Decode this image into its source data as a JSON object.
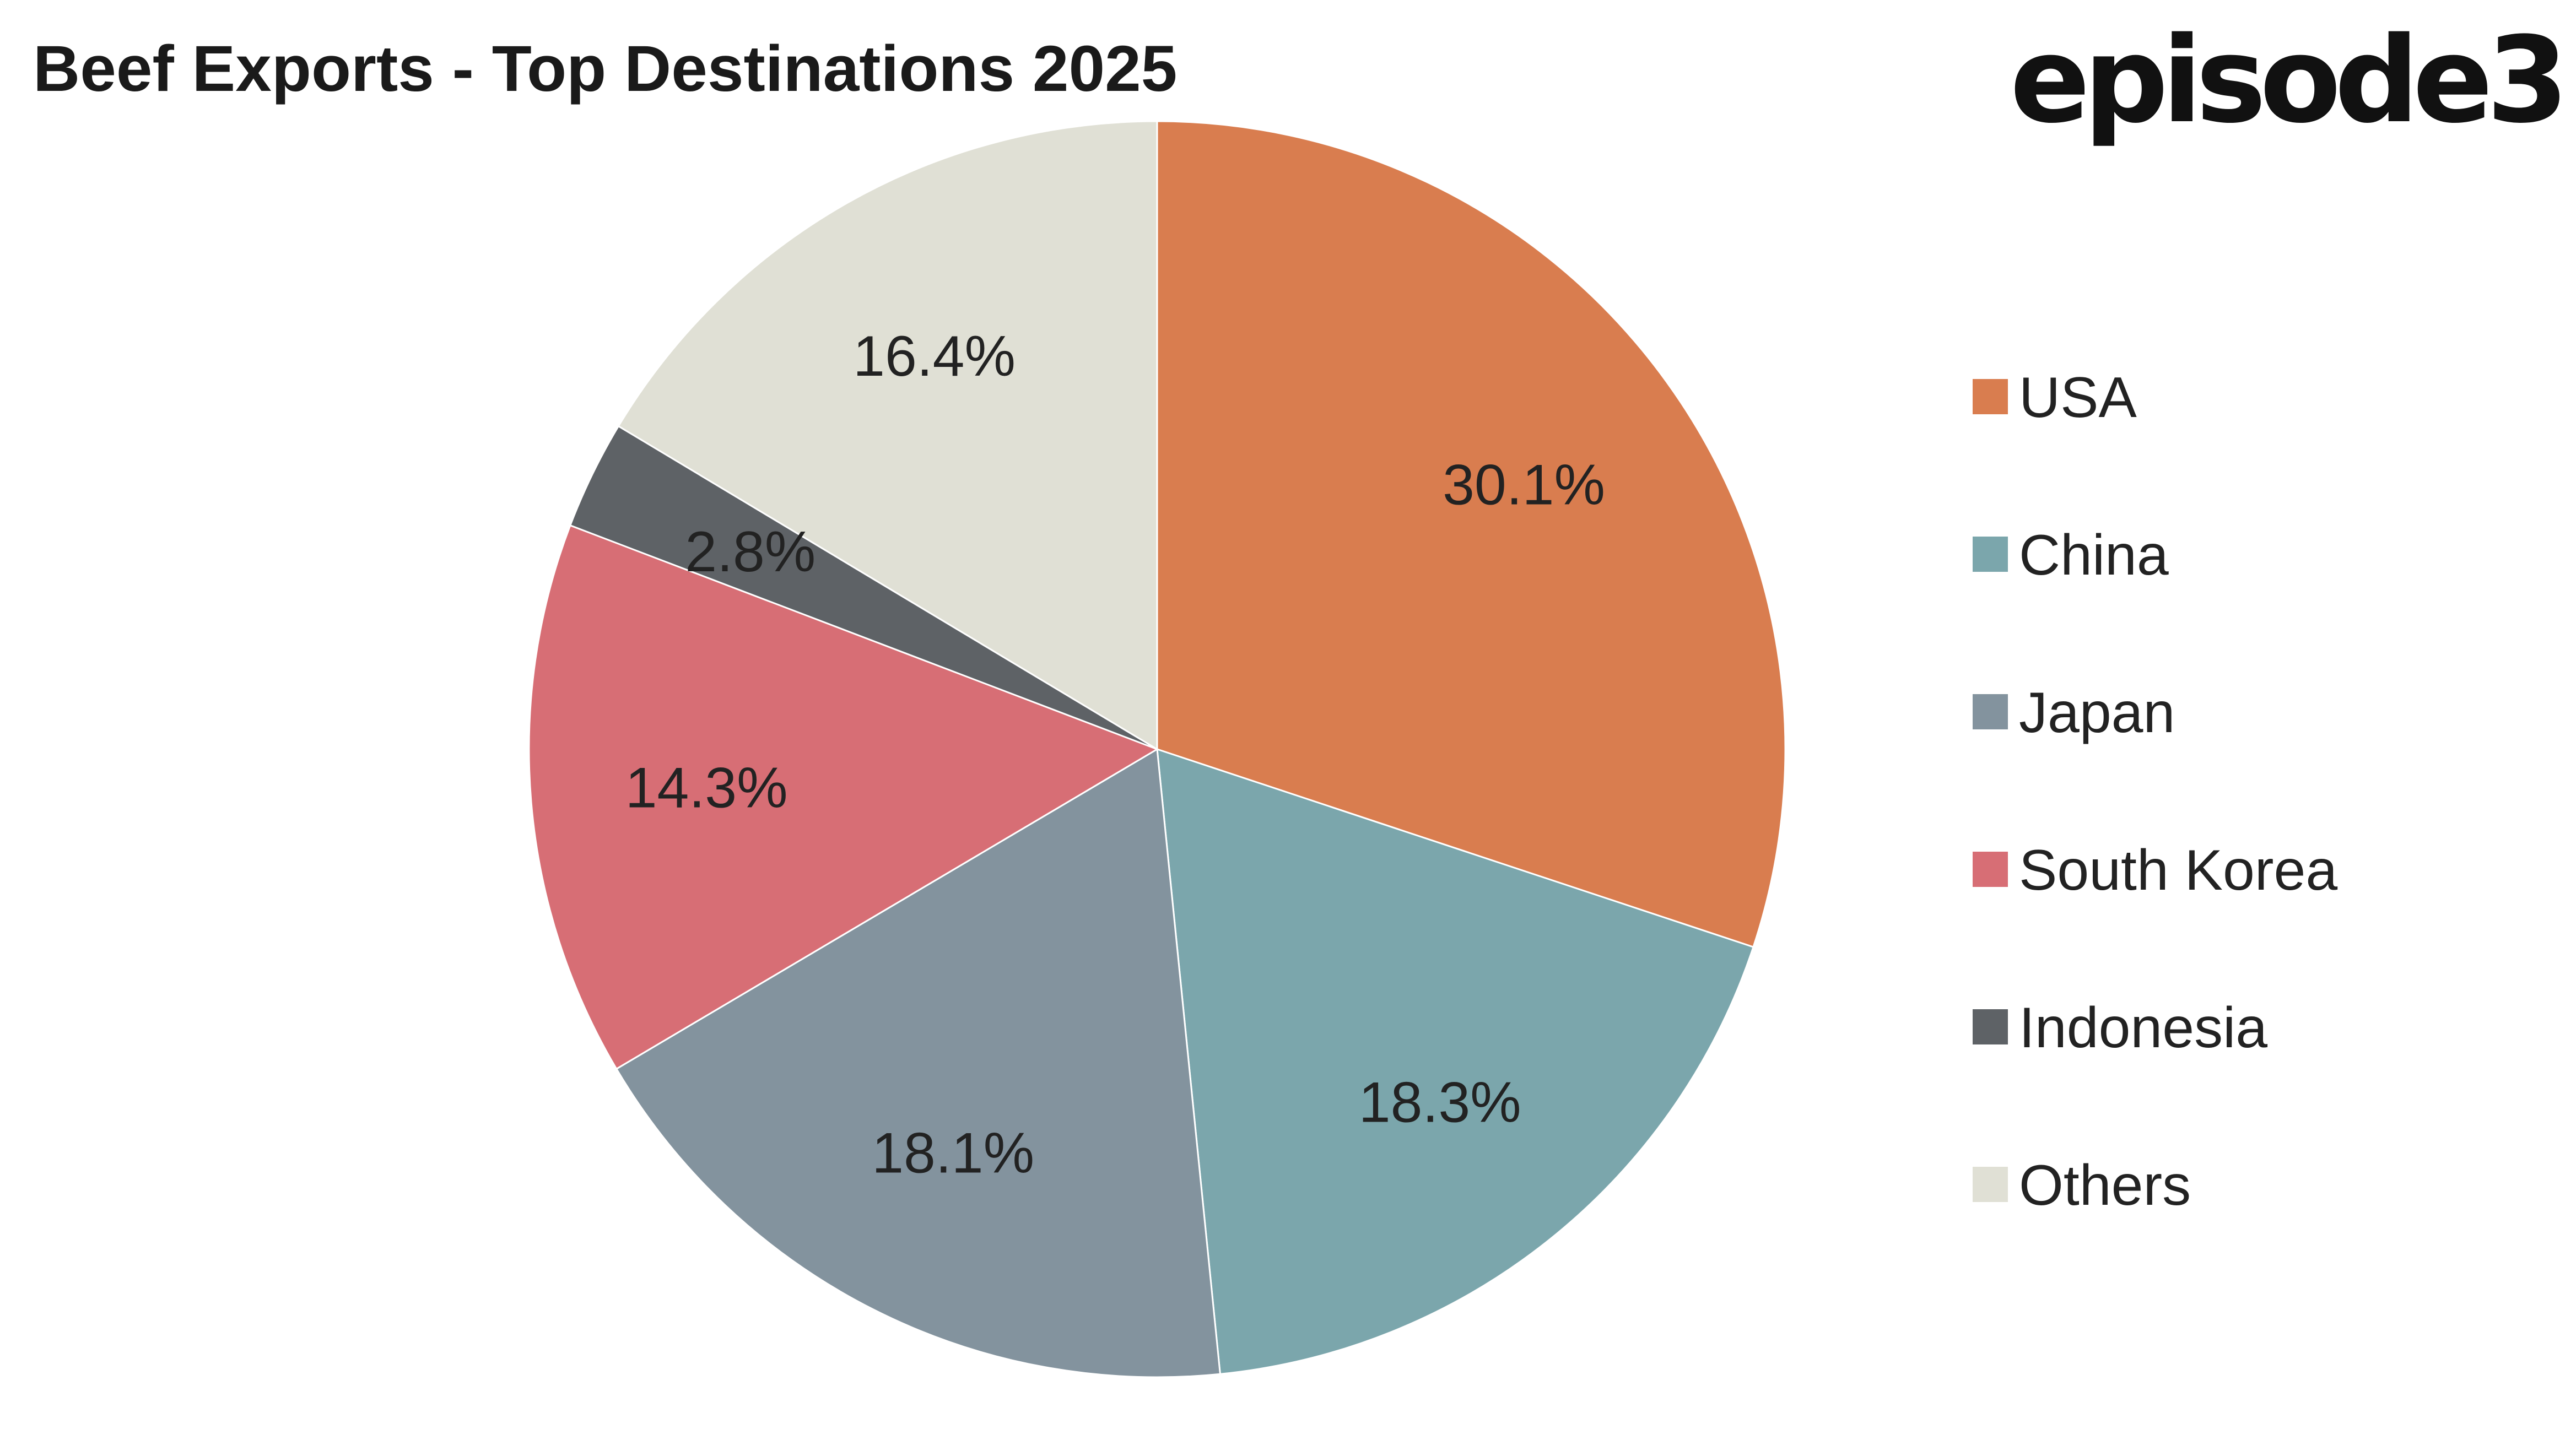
{
  "logo": {
    "text": "episode3"
  },
  "chart_data": {
    "type": "pie",
    "title": "Beef Exports - Top Destinations 2025",
    "start_angle_deg": 0,
    "direction": "clockwise",
    "legend_position": "right",
    "slices": [
      {
        "label": "USA",
        "value": 30.1,
        "display": "30.1%",
        "color": "#D97D4F"
      },
      {
        "label": "China",
        "value": 18.3,
        "display": "18.3%",
        "color": "#7BA6AC"
      },
      {
        "label": "Japan",
        "value": 18.1,
        "display": "18.1%",
        "color": "#83939E"
      },
      {
        "label": "South Korea",
        "value": 14.3,
        "display": "14.3%",
        "color": "#D76E75"
      },
      {
        "label": "Indonesia",
        "value": 2.8,
        "display": "2.8%",
        "color": "#5E6266"
      },
      {
        "label": "Others",
        "value": 16.4,
        "display": "16.4%",
        "color": "#E0E0D5"
      }
    ]
  }
}
